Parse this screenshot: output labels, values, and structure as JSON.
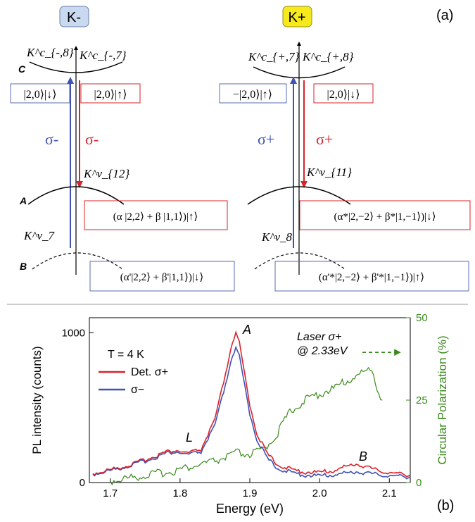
{
  "panel_a": {
    "panel_label": "(a)",
    "left": {
      "header": "K-",
      "top_left_state": "K^c_{-,8}",
      "top_right_state": "K^c_{-,7}",
      "mid_state": "K^v_{12}",
      "low_state": "K^v_7",
      "band_c": "C",
      "band_a": "A",
      "band_b": "B",
      "box_top_left": "|2,0⟩|↓⟩",
      "box_top_right": "|2,0⟩|↑⟩",
      "arrow_blue": "σ-",
      "arrow_red": "σ-",
      "box_mid": "(α |2,2⟩ + β |1,1⟩)|↑⟩",
      "box_low": "(α'|2,2⟩ + β'|1,1⟩)|↓⟩"
    },
    "right": {
      "header": "K+",
      "top_left_state": "K^c_{+,7}",
      "top_right_state": "K^c_{+,8}",
      "mid_state": "K^v_{11}",
      "low_state": "K^v_8",
      "box_top_left": "−|2,0⟩|↑⟩",
      "box_top_right": "|2,0⟩|↓⟩",
      "arrow_blue": "σ+",
      "arrow_red": "σ+",
      "box_mid": "(α*|2,−2⟩ + β*|1,−1⟩)|↓⟩",
      "box_low": "(α'*|2,−2⟩ + β'*|1,−1⟩)|↑⟩"
    }
  },
  "panel_b": {
    "panel_label": "(b)",
    "temperature": "T = 4 K",
    "laser_line1": "Laser σ+",
    "laser_line2": "@ 2.33eV",
    "peak_A": "A",
    "peak_L": "L",
    "peak_B": "B"
  },
  "colors": {
    "red": "#d8232a",
    "blue": "#3f51b5",
    "green": "#3a8a1c",
    "k_minus_bg": "#c9d9f0",
    "k_plus_bg": "#f7ea1c"
  },
  "chart_data": {
    "type": "line",
    "xlabel": "Energy (eV)",
    "ylabel": "PL intensity (counts)",
    "y2label": "Circular Polarization (%)",
    "xlim": [
      1.67,
      2.13
    ],
    "ylim": [
      0,
      1100
    ],
    "y2lim": [
      0,
      50
    ],
    "xticks": [
      1.7,
      1.8,
      1.9,
      2.0,
      2.1
    ],
    "yticks": [
      0,
      1000
    ],
    "y2ticks": [
      0,
      25,
      50
    ],
    "legend_position": "upper-left",
    "series": [
      {
        "name": "Det. σ+",
        "color": "#d8232a",
        "axis": "left",
        "x": [
          1.675,
          1.7,
          1.73,
          1.76,
          1.78,
          1.795,
          1.81,
          1.83,
          1.85,
          1.86,
          1.87,
          1.875,
          1.88,
          1.885,
          1.89,
          1.9,
          1.91,
          1.925,
          1.94,
          1.96,
          1.98,
          2.0,
          2.02,
          2.04,
          2.05,
          2.06,
          2.08,
          2.1,
          2.13
        ],
        "y": [
          60,
          85,
          120,
          170,
          205,
          215,
          195,
          220,
          420,
          620,
          830,
          940,
          990,
          930,
          790,
          520,
          330,
          190,
          120,
          85,
          70,
          68,
          80,
          110,
          125,
          115,
          85,
          65,
          50
        ]
      },
      {
        "name": "σ−",
        "color": "#3f51b5",
        "axis": "left",
        "x": [
          1.675,
          1.7,
          1.73,
          1.76,
          1.78,
          1.795,
          1.81,
          1.83,
          1.85,
          1.86,
          1.87,
          1.875,
          1.88,
          1.885,
          1.89,
          1.9,
          1.91,
          1.925,
          1.94,
          1.96,
          1.98,
          2.0,
          2.02,
          2.04,
          2.05,
          2.06,
          2.08,
          2.1,
          2.13
        ],
        "y": [
          55,
          80,
          115,
          160,
          195,
          205,
          185,
          205,
          380,
          560,
          750,
          850,
          890,
          840,
          710,
          460,
          290,
          160,
          95,
          65,
          50,
          45,
          52,
          65,
          72,
          68,
          55,
          45,
          38
        ]
      },
      {
        "name": "Circular Polarization",
        "color": "#3a8a1c",
        "axis": "right",
        "x": [
          1.7,
          1.73,
          1.76,
          1.79,
          1.81,
          1.83,
          1.85,
          1.87,
          1.88,
          1.9,
          1.92,
          1.94,
          1.95,
          1.96,
          1.98,
          2.0,
          2.02,
          2.04,
          2.06,
          2.075,
          2.08,
          2.09
        ],
        "y": [
          0.5,
          1.5,
          2.5,
          3.5,
          4.5,
          5.5,
          6.5,
          8,
          9,
          8.5,
          10,
          15,
          19,
          22,
          25,
          27,
          28.5,
          31,
          33,
          35,
          30,
          25
        ]
      }
    ],
    "annotation": {
      "type": "dashed-arrow",
      "color": "#3a8a1c",
      "y2_value": 35,
      "direction": "right"
    }
  }
}
